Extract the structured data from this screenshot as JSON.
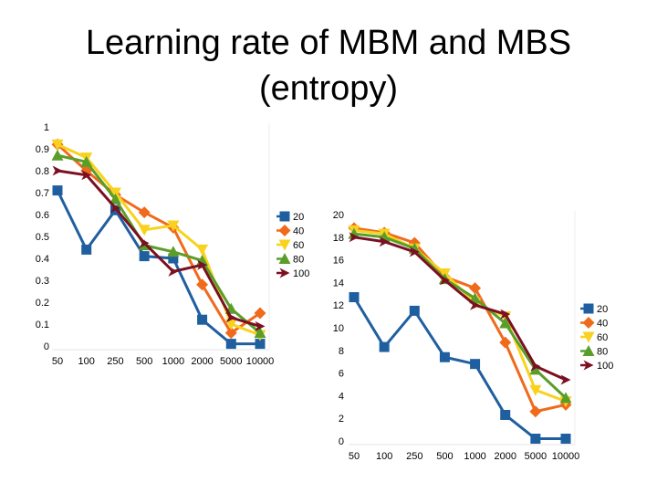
{
  "title_line1": "Learning rate of MBM and MBS",
  "title_line2": "(entropy)",
  "chart_data": [
    {
      "type": "line",
      "categories": [
        "50",
        "100",
        "250",
        "500",
        "1000",
        "2000",
        "5000",
        "10000"
      ],
      "ylim": [
        0,
        1
      ],
      "y_ticks": [
        "0",
        "0.1",
        "0.2",
        "0.3",
        "0.4",
        "0.5",
        "0.6",
        "0.7",
        "0.8",
        "0.9",
        "1"
      ],
      "grid": false,
      "legend_position": "right",
      "series": [
        {
          "name": "20",
          "color": "#1f5fa0",
          "marker": "square",
          "values": [
            0.71,
            0.44,
            0.62,
            0.41,
            0.4,
            0.12,
            0.01,
            0.01
          ]
        },
        {
          "name": "40",
          "color": "#f06a1c",
          "marker": "diamond",
          "values": [
            0.92,
            0.8,
            0.69,
            0.61,
            0.54,
            0.28,
            0.06,
            0.15
          ]
        },
        {
          "name": "60",
          "color": "#f8d21e",
          "marker": "triangle-down",
          "values": [
            0.92,
            0.86,
            0.7,
            0.53,
            0.55,
            0.44,
            0.1,
            0.05
          ]
        },
        {
          "name": "80",
          "color": "#5a9e2a",
          "marker": "triangle-up",
          "values": [
            0.87,
            0.84,
            0.67,
            0.46,
            0.43,
            0.39,
            0.17,
            0.06
          ]
        },
        {
          "name": "100",
          "color": "#7b1022",
          "marker": "arrow",
          "values": [
            0.8,
            0.78,
            0.63,
            0.47,
            0.34,
            0.37,
            0.13,
            0.09
          ]
        }
      ]
    },
    {
      "type": "line",
      "categories": [
        "50",
        "100",
        "250",
        "500",
        "1000",
        "2000",
        "5000",
        "10000"
      ],
      "ylim": [
        0,
        20
      ],
      "y_ticks": [
        "0",
        "2",
        "4",
        "6",
        "8",
        "10",
        "12",
        "14",
        "16",
        "18",
        "20"
      ],
      "grid": false,
      "legend_position": "right",
      "series": [
        {
          "name": "20",
          "color": "#1f5fa0",
          "marker": "square",
          "values": [
            12.7,
            8.3,
            11.5,
            7.4,
            6.8,
            2.3,
            0.2,
            0.2
          ]
        },
        {
          "name": "40",
          "color": "#f06a1c",
          "marker": "diamond",
          "values": [
            18.8,
            18.4,
            17.5,
            14.5,
            13.5,
            8.7,
            2.6,
            3.2
          ]
        },
        {
          "name": "60",
          "color": "#f8d21e",
          "marker": "triangle-down",
          "values": [
            18.6,
            18.3,
            17.0,
            14.8,
            12.2,
            11.0,
            4.5,
            3.5
          ]
        },
        {
          "name": "80",
          "color": "#5a9e2a",
          "marker": "triangle-up",
          "values": [
            18.3,
            18.0,
            17.0,
            14.3,
            12.6,
            10.4,
            6.3,
            3.8
          ]
        },
        {
          "name": "100",
          "color": "#7b1022",
          "marker": "arrow",
          "values": [
            18.0,
            17.6,
            16.7,
            14.2,
            12.0,
            11.2,
            6.6,
            5.4
          ]
        }
      ]
    }
  ]
}
